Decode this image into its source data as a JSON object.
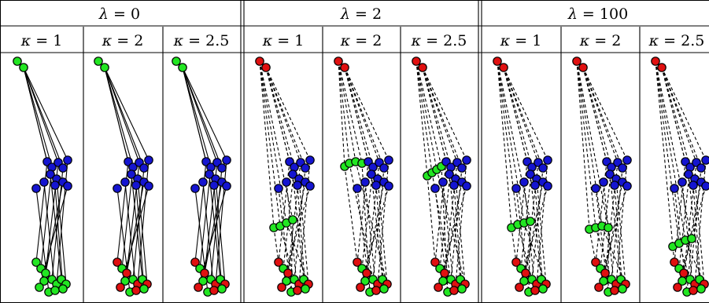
{
  "table": {
    "groups": [
      {
        "symbol": "λ",
        "value": "0"
      },
      {
        "symbol": "λ",
        "value": "2"
      },
      {
        "symbol": "λ",
        "value": "100"
      }
    ],
    "subheaders": [
      {
        "symbol": "κ",
        "value": "1"
      },
      {
        "symbol": "κ",
        "value": "2"
      },
      {
        "symbol": "κ",
        "value": "2.5"
      },
      {
        "symbol": "κ",
        "value": "1"
      },
      {
        "symbol": "κ",
        "value": "2"
      },
      {
        "symbol": "κ",
        "value": "2.5"
      },
      {
        "symbol": "κ",
        "value": "1"
      },
      {
        "symbol": "κ",
        "value": "2"
      },
      {
        "symbol": "κ",
        "value": "2.5"
      }
    ]
  },
  "colors": {
    "blue": "#1515d0",
    "green": "#22e622",
    "red": "#e01010",
    "lines": "#000000"
  },
  "line_style": {
    "lambda_0": "solid",
    "lambda_2": "dashed",
    "lambda_100": "dashed"
  }
}
